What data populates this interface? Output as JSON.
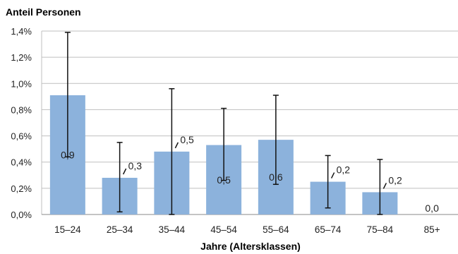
{
  "chart_data": {
    "type": "bar",
    "ylabel": "Anteil Personen",
    "xlabel": "Jahre (Altersklassen)",
    "ylim": [
      0,
      1.4
    ],
    "yticks": [
      "0,0%",
      "0,2%",
      "0,4%",
      "0,6%",
      "0,8%",
      "1,0%",
      "1,2%",
      "1,4%"
    ],
    "grid": true,
    "categories": [
      "15–24",
      "25–34",
      "35–44",
      "45–54",
      "55–64",
      "65–74",
      "75–84",
      "85+"
    ],
    "values": [
      0.91,
      0.28,
      0.48,
      0.53,
      0.57,
      0.25,
      0.17,
      0.0
    ],
    "error_low": [
      0.44,
      0.02,
      0.0,
      0.26,
      0.23,
      0.05,
      0.0,
      null
    ],
    "error_high": [
      1.39,
      0.55,
      0.96,
      0.81,
      0.91,
      0.45,
      0.42,
      null
    ],
    "data_labels": [
      "0,9",
      "0,3",
      "0,5",
      "0,5",
      "0,6",
      "0,2",
      "0,2",
      "0,0"
    ],
    "data_label_position": [
      "inside",
      "leader",
      "leader",
      "inside",
      "inside",
      "leader",
      "leader",
      "above"
    ],
    "bar_color": "#8cb2dc",
    "gridline_color": "#bfbfbf"
  }
}
